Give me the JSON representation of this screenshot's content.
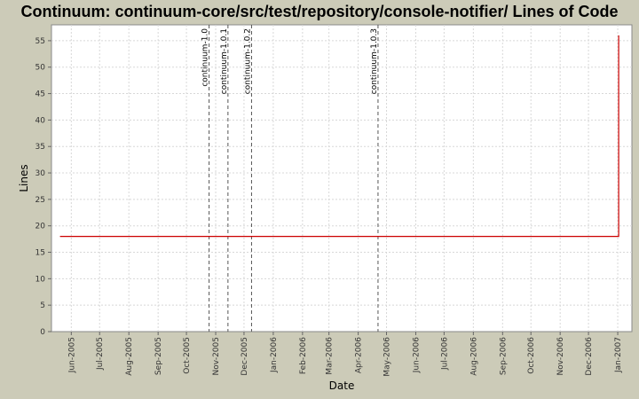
{
  "chart_data": {
    "type": "line",
    "title": "Continuum: continuum-core/src/test/repository/console-notifier/ Lines of Code",
    "xlabel": "Date",
    "ylabel": "Lines",
    "ylim": [
      0,
      58
    ],
    "xlim": [
      "2005-05-11",
      "2007-01-16"
    ],
    "y_ticks": [
      0,
      5,
      10,
      15,
      20,
      25,
      30,
      35,
      40,
      45,
      50,
      55
    ],
    "x_ticks": [
      {
        "label": "Jun-2005",
        "date": "2005-06-01"
      },
      {
        "label": "Jul-2005",
        "date": "2005-07-01"
      },
      {
        "label": "Aug-2005",
        "date": "2005-08-01"
      },
      {
        "label": "Sep-2005",
        "date": "2005-09-01"
      },
      {
        "label": "Oct-2005",
        "date": "2005-10-01"
      },
      {
        "label": "Nov-2005",
        "date": "2005-11-01"
      },
      {
        "label": "Dec-2005",
        "date": "2005-12-01"
      },
      {
        "label": "Jan-2006",
        "date": "2006-01-01"
      },
      {
        "label": "Feb-2006",
        "date": "2006-02-01"
      },
      {
        "label": "Mar-2006",
        "date": "2006-03-01"
      },
      {
        "label": "Apr-2006",
        "date": "2006-04-01"
      },
      {
        "label": "May-2006",
        "date": "2006-05-01"
      },
      {
        "label": "Jun-2006",
        "date": "2006-06-01"
      },
      {
        "label": "Jul-2006",
        "date": "2006-07-01"
      },
      {
        "label": "Aug-2006",
        "date": "2006-08-01"
      },
      {
        "label": "Sep-2006",
        "date": "2006-09-01"
      },
      {
        "label": "Oct-2006",
        "date": "2006-10-01"
      },
      {
        "label": "Nov-2006",
        "date": "2006-11-01"
      },
      {
        "label": "Dec-2006",
        "date": "2006-12-01"
      },
      {
        "label": "Jan-2007",
        "date": "2007-01-01"
      }
    ],
    "series": [
      {
        "color": "#cc0000",
        "points": [
          {
            "x": "2005-05-20",
            "y": 18
          },
          {
            "x": "2007-01-02",
            "y": 18
          },
          {
            "x": "2007-01-02",
            "y": 56
          }
        ]
      }
    ],
    "markers": [
      {
        "label": "continuum-1.0",
        "date": "2005-10-25"
      },
      {
        "label": "continuum-1.0.1",
        "date": "2005-11-14"
      },
      {
        "label": "continuum-1.0.2",
        "date": "2005-12-09"
      },
      {
        "label": "continuum-1.0.3",
        "date": "2006-04-22"
      }
    ],
    "grid": true,
    "plot_background": "#ffffff",
    "legend": "none"
  }
}
